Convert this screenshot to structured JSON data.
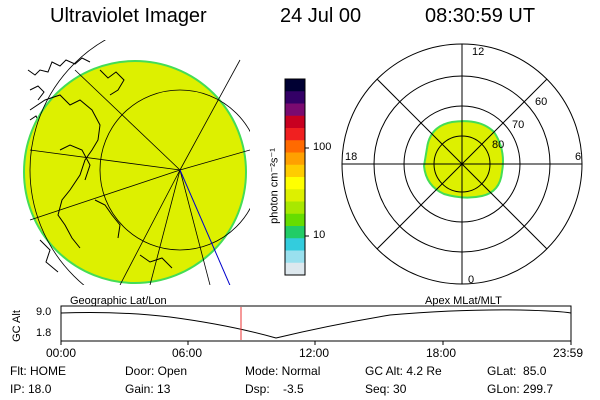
{
  "header": {
    "title": "Ultraviolet Imager",
    "date": "24 Jul 00",
    "time": "08:30:59 UT"
  },
  "colorbar": {
    "unit_label": "photon cm⁻²s⁻¹",
    "ticks": [
      "100",
      "10"
    ],
    "colors": [
      "#000033",
      "#330066",
      "#7a0a70",
      "#c80020",
      "#f02020",
      "#ff6a00",
      "#ffa000",
      "#ffcc00",
      "#ffff00",
      "#ddf000",
      "#a8e800",
      "#66dd00",
      "#22cc66",
      "#33ccdd",
      "#99e0ee",
      "#dde8ee"
    ]
  },
  "geo_panel": {
    "label": "Geographic Lat/Lon",
    "fill_color": "#ddf000",
    "edge_color": "#44dd55"
  },
  "polar_panel": {
    "label": "Apex MLat/MLT",
    "mlt_labels": {
      "top": "12",
      "bottom": "0",
      "left": "18",
      "right": "6"
    },
    "lat_labels": [
      "60",
      "70",
      "80"
    ],
    "oval_color": "#ddf000"
  },
  "altitude_plot": {
    "ylabel": "GC Alt",
    "y_ticks": [
      "9.0",
      "1.8"
    ],
    "x_ticks": [
      "00:00",
      "06:00",
      "12:00",
      "18:00",
      "23:59"
    ],
    "marker_time": "08:31",
    "marker_color": "#ee3333"
  },
  "info": {
    "flt": "Flt: HOME",
    "ip": "IP: 18.0",
    "door": "Door: Open",
    "gain": "Gain: 13",
    "mode": "Mode: Normal",
    "dsp": "Dsp:    -3.5",
    "gc_alt": "GC Alt: 4.2 Re",
    "seq": "Seq: 30",
    "glat": "GLat:  85.0",
    "glon": "GLon: 299.7"
  }
}
